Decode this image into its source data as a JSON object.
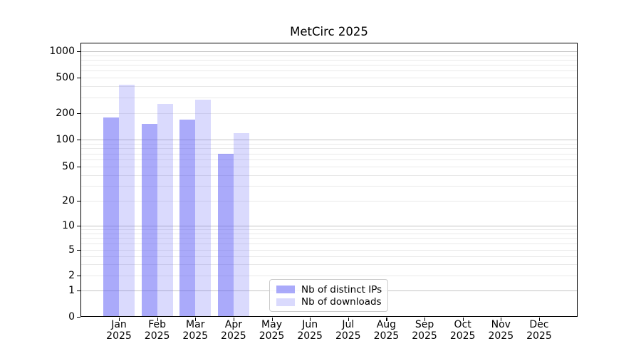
{
  "chart_data": {
    "type": "bar",
    "title": "MetCirc 2025",
    "categories": [
      "Jan",
      "Feb",
      "Mar",
      "Apr",
      "May",
      "Jun",
      "Jul",
      "Aug",
      "Sep",
      "Oct",
      "Nov",
      "Dec"
    ],
    "category_year": "2025",
    "series": [
      {
        "name": "Nb of distinct IPs",
        "color": "#5555f5",
        "alpha": 0.5,
        "values": [
          180,
          150,
          170,
          70,
          null,
          null,
          null,
          null,
          null,
          null,
          null,
          null
        ]
      },
      {
        "name": "Nb of downloads",
        "color": "#5555f5",
        "alpha": 0.22,
        "values": [
          415,
          255,
          285,
          118,
          null,
          null,
          null,
          null,
          null,
          null,
          null,
          null
        ]
      }
    ],
    "yscale": "asinh-log",
    "yticks": [
      0,
      1,
      2,
      5,
      10,
      20,
      50,
      100,
      200,
      500,
      1000
    ],
    "ylim": [
      0,
      1250
    ],
    "xlabel": "",
    "ylabel": "",
    "grid": "both",
    "legend_position": "lower-center",
    "grid_major_color": "#c4c4c4",
    "grid_minor_color": "#e9e9e9"
  }
}
